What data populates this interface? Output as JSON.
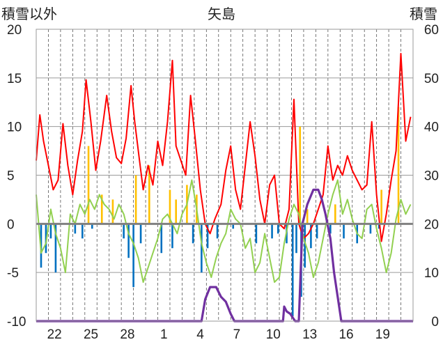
{
  "chart_data": {
    "type": "bar",
    "title": "矢島",
    "left_axis_label": "積雪以外",
    "right_axis_label": "積雪",
    "left_ylim": [
      -10,
      20
    ],
    "right_ylim": [
      0,
      60
    ],
    "left_ticks": [
      "20",
      "15",
      "10",
      "5",
      "0",
      "-5",
      "-10"
    ],
    "right_ticks": [
      "60",
      "50",
      "40",
      "30",
      "20",
      "10",
      "0"
    ],
    "x_tick_labels": [
      "22",
      "25",
      "28",
      "1",
      "4",
      "7",
      "10",
      "13",
      "16",
      "19"
    ],
    "x_day_index": [
      2,
      5,
      8,
      11,
      14,
      17,
      20,
      23,
      26,
      29
    ],
    "n_days": 31,
    "grid": "dashed vertical lines at each day, horizontal lines at each 5 units",
    "colors": {
      "red": "#ff0000",
      "orange": "#ffc000",
      "green": "#92d050",
      "blue": "#0070c0",
      "purple": "#7030a0",
      "zero": "#808080"
    },
    "series": [
      {
        "color_key": "red",
        "style": "line",
        "x": [
          0,
          0.3,
          0.6,
          1.0,
          1.4,
          1.8,
          2.2,
          2.6,
          3.0,
          3.4,
          3.8,
          4.1,
          4.5,
          4.9,
          5.3,
          5.8,
          6.2,
          6.6,
          7.0,
          7.4,
          7.8,
          8.1,
          8.5,
          8.8,
          9.2,
          9.6,
          10.0,
          10.4,
          10.8,
          11.2,
          11.5,
          11.9,
          12.3,
          12.7,
          13.1,
          13.5,
          13.9,
          14.3,
          14.7,
          15.2,
          15.6,
          16.0,
          16.4,
          16.8,
          17.2,
          17.6,
          18.0,
          18.4,
          18.8,
          19.2,
          19.6,
          20.0,
          20.4,
          20.8,
          21.2,
          21.6,
          22.0,
          22.4,
          22.8,
          23.2,
          23.6,
          24.0,
          24.4,
          24.8,
          25.2,
          25.6,
          26.0,
          26.4,
          26.8,
          27.2,
          27.6,
          28.0,
          28.4,
          28.8,
          29.2,
          29.6,
          30.0,
          30.4,
          30.8
        ],
        "values": [
          6.5,
          11.2,
          8.5,
          6.0,
          3.5,
          4.5,
          10.3,
          6.0,
          3.0,
          6.5,
          9.5,
          14.8,
          10.5,
          5.5,
          8.5,
          13.2,
          9.5,
          6.8,
          6.2,
          8.8,
          14.2,
          10.5,
          6.5,
          3.5,
          6.0,
          4.0,
          8.5,
          6.0,
          10.5,
          16.8,
          8.0,
          6.5,
          5.0,
          13.2,
          8.5,
          3.5,
          0.0,
          -1.0,
          0.5,
          2.0,
          5.5,
          8.0,
          3.5,
          1.5,
          6.0,
          10.5,
          7.0,
          2.5,
          0.0,
          4.0,
          5.0,
          0.0,
          -0.5,
          1.5,
          12.8,
          0.0,
          -1.5,
          -1.0,
          0.0,
          1.5,
          3.0,
          8.0,
          4.5,
          6.0,
          5.0,
          7.0,
          5.5,
          4.5,
          3.5,
          4.0,
          10.5,
          3.0,
          -1.8,
          1.0,
          4.5,
          7.5,
          17.5,
          8.5,
          11.0
        ]
      },
      {
        "color_key": "green",
        "style": "line",
        "x": [
          0,
          0.4,
          0.8,
          1.2,
          1.6,
          2.0,
          2.4,
          2.8,
          3.2,
          3.6,
          4.0,
          4.4,
          4.8,
          5.2,
          5.6,
          6.0,
          6.4,
          6.8,
          7.2,
          7.6,
          8.0,
          8.4,
          8.8,
          9.2,
          9.6,
          10.0,
          10.4,
          10.8,
          11.2,
          11.6,
          12.0,
          12.4,
          12.8,
          13.2,
          13.6,
          14.0,
          14.4,
          14.8,
          15.2,
          15.6,
          16.0,
          16.4,
          16.8,
          17.2,
          17.6,
          18.0,
          18.4,
          18.8,
          19.2,
          19.6,
          20.0,
          20.4,
          20.8,
          21.2,
          21.6,
          22.0,
          22.4,
          22.8,
          23.2,
          23.6,
          24.0,
          24.4,
          24.8,
          25.2,
          25.6,
          26.0,
          26.4,
          26.8,
          27.2,
          27.6,
          28.0,
          28.4,
          28.8,
          29.2,
          29.6,
          30.0,
          30.4,
          30.8
        ],
        "values": [
          3.0,
          -3.0,
          -2.0,
          1.5,
          -1.0,
          -2.5,
          -5.0,
          1.0,
          0.0,
          2.0,
          1.0,
          2.5,
          1.5,
          3.0,
          2.0,
          1.5,
          0.5,
          2.0,
          1.0,
          -1.0,
          -2.0,
          -3.5,
          -6.0,
          -4.5,
          -3.0,
          -1.5,
          0.5,
          1.0,
          0.0,
          -1.0,
          1.0,
          2.0,
          4.5,
          1.5,
          -2.0,
          -4.0,
          -5.5,
          -3.5,
          -2.0,
          -1.0,
          1.5,
          0.5,
          0.0,
          -2.5,
          -1.5,
          -5.0,
          -4.0,
          -1.0,
          -3.5,
          -6.0,
          -5.5,
          -2.0,
          0.5,
          2.0,
          1.0,
          -1.5,
          -3.0,
          -5.5,
          -4.0,
          -1.5,
          1.0,
          3.0,
          4.5,
          1.0,
          2.5,
          0.5,
          -1.0,
          -1.5,
          1.5,
          2.0,
          -0.5,
          -2.5,
          -5.0,
          -3.0,
          0.5,
          2.5,
          1.0,
          2.0
        ]
      },
      {
        "color_key": "orange",
        "style": "bar",
        "x": [
          4.3,
          5.4,
          6.3,
          8.2,
          9.3,
          11.0,
          11.5,
          12.4,
          13.2,
          21.7,
          22.3,
          24.6,
          28.4,
          29.8
        ],
        "values": [
          8.0,
          3.0,
          2.5,
          5.0,
          6.0,
          3.5,
          2.5,
          4.0,
          3.0,
          10.0,
          1.5,
          2.0,
          3.5,
          12.0
        ]
      },
      {
        "color_key": "blue",
        "style": "bar",
        "x": [
          0.4,
          0.8,
          1.2,
          1.6,
          3.2,
          3.8,
          4.6,
          7.2,
          7.6,
          8.0,
          8.6,
          10.3,
          11.2,
          12.9,
          13.6,
          14.1,
          14.9,
          16.2,
          18.1,
          19.4,
          19.9,
          20.6,
          21.1,
          21.4,
          21.8,
          22.1,
          22.6,
          23.1,
          24.2,
          25.3,
          26.4,
          27.5,
          28.2
        ],
        "values": [
          -4.5,
          -3.0,
          -1.5,
          -5.0,
          -1.0,
          -1.5,
          -0.5,
          -1.5,
          -3.5,
          -6.5,
          -2.0,
          -3.0,
          -2.5,
          -2.0,
          -5.0,
          -2.5,
          -1.5,
          -0.5,
          -2.0,
          -1.5,
          -1.0,
          -2.0,
          -9.5,
          -3.0,
          -7.5,
          -4.5,
          -2.5,
          -1.5,
          -1.0,
          -1.5,
          -2.0,
          -1.0,
          -0.5
        ]
      },
      {
        "color_key": "purple",
        "style": "line",
        "axis": "right",
        "x": [
          0,
          13.6,
          13.9,
          14.3,
          14.8,
          15.2,
          15.6,
          16.0,
          16.3,
          20.3,
          20.4,
          20.6,
          20.9,
          21.3,
          21.6,
          21.9,
          22.3,
          22.8,
          23.2,
          23.5,
          23.8,
          24.2,
          24.5,
          24.8,
          25.1,
          31
        ],
        "values": [
          0,
          0,
          4.5,
          7.0,
          7.0,
          5.0,
          4.0,
          1.5,
          0,
          0,
          3.0,
          2.0,
          1.5,
          0,
          0,
          20.0,
          24.0,
          27.0,
          27.0,
          25.0,
          22.0,
          17.0,
          10.0,
          5.0,
          0,
          0
        ]
      }
    ]
  }
}
